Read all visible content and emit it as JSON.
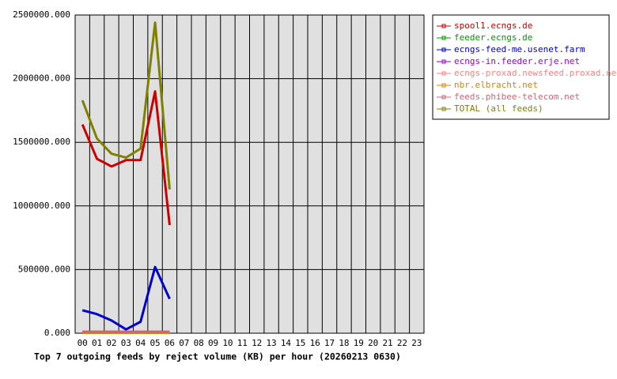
{
  "chart_data": {
    "type": "line",
    "title": "Top 7 outgoing feeds by reject volume (KB) per hour (20260213 0630)",
    "categories": [
      "00",
      "01",
      "02",
      "03",
      "04",
      "05",
      "06",
      "07",
      "08",
      "09",
      "10",
      "11",
      "12",
      "13",
      "14",
      "15",
      "16",
      "17",
      "18",
      "19",
      "20",
      "21",
      "22",
      "23"
    ],
    "series": [
      {
        "name": "spool1.ecngs.de",
        "color": "#cc0000",
        "values": [
          1640000,
          1370000,
          1310000,
          1360000,
          1360000,
          1900000,
          850000,
          null,
          null,
          null,
          null,
          null,
          null,
          null,
          null,
          null,
          null,
          null,
          null,
          null,
          null,
          null,
          null,
          null
        ]
      },
      {
        "name": "feeder.ecngs.de",
        "color": "#009900",
        "values": [
          10000,
          10000,
          10000,
          10000,
          10000,
          10000,
          10000,
          null,
          null,
          null,
          null,
          null,
          null,
          null,
          null,
          null,
          null,
          null,
          null,
          null,
          null,
          null,
          null,
          null
        ]
      },
      {
        "name": "ecngs-feed-me.usenet.farm",
        "color": "#0000cc",
        "values": [
          180000,
          150000,
          100000,
          30000,
          90000,
          520000,
          270000,
          null,
          null,
          null,
          null,
          null,
          null,
          null,
          null,
          null,
          null,
          null,
          null,
          null,
          null,
          null,
          null,
          null
        ]
      },
      {
        "name": "ecngs-in.feeder.erje.net",
        "color": "#9900cc",
        "values": [
          5000,
          5000,
          5000,
          5000,
          5000,
          5000,
          5000,
          null,
          null,
          null,
          null,
          null,
          null,
          null,
          null,
          null,
          null,
          null,
          null,
          null,
          null,
          null,
          null,
          null
        ]
      },
      {
        "name": "ecngs-proxad.newsfeed.proxad.net",
        "color": "#ff8080",
        "values": [
          8000,
          8000,
          8000,
          8000,
          8000,
          8000,
          8000,
          null,
          null,
          null,
          null,
          null,
          null,
          null,
          null,
          null,
          null,
          null,
          null,
          null,
          null,
          null,
          null,
          null
        ]
      },
      {
        "name": "nbr.elbracht.net",
        "color": "#e08000",
        "values": [
          3000,
          3000,
          3000,
          3000,
          3000,
          3000,
          3000,
          null,
          null,
          null,
          null,
          null,
          null,
          null,
          null,
          null,
          null,
          null,
          null,
          null,
          null,
          null,
          null,
          null
        ]
      },
      {
        "name": "feeds.phibee-telecom.net",
        "color": "#cc6677",
        "values": [
          12000,
          12000,
          12000,
          12000,
          12000,
          12000,
          12000,
          null,
          null,
          null,
          null,
          null,
          null,
          null,
          null,
          null,
          null,
          null,
          null,
          null,
          null,
          null,
          null,
          null
        ]
      },
      {
        "name": "TOTAL (all feeds)",
        "color": "#808000",
        "values": [
          1830000,
          1530000,
          1410000,
          1380000,
          1450000,
          2440000,
          1130000,
          null,
          null,
          null,
          null,
          null,
          null,
          null,
          null,
          null,
          null,
          null,
          null,
          null,
          null,
          null,
          null,
          null
        ]
      }
    ],
    "ylim": [
      0,
      2500000
    ],
    "yticks": [
      {
        "value": 0,
        "label": "0.000"
      },
      {
        "value": 500000,
        "label": "500000.000"
      },
      {
        "value": 1000000,
        "label": "1000000.000"
      },
      {
        "value": 1500000,
        "label": "1500000.000"
      },
      {
        "value": 2000000,
        "label": "2000000.000"
      },
      {
        "value": 2500000,
        "label": "2500000.000"
      }
    ],
    "grid": true,
    "legend": "right"
  }
}
